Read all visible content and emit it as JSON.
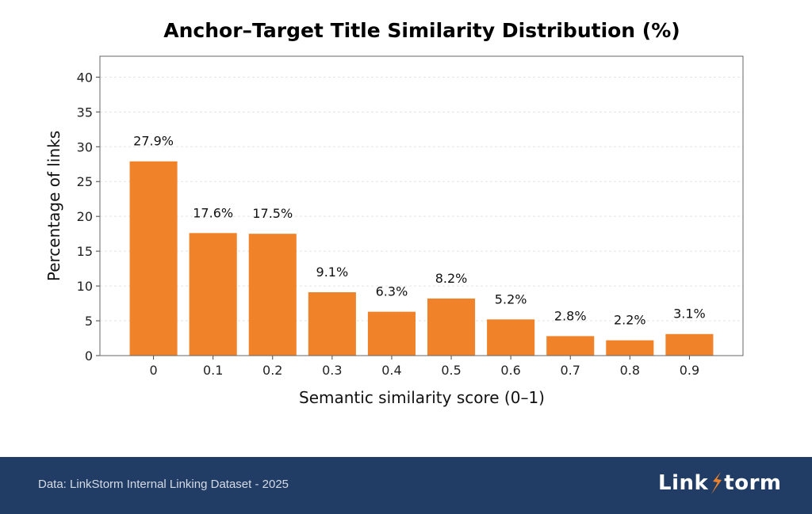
{
  "chart_data": {
    "type": "bar",
    "title": "Anchor–Target Title Similarity Distribution (%)",
    "xlabel": "Semantic similarity score (0–1)",
    "ylabel": "Percentage of links",
    "categories": [
      "0",
      "0.1",
      "0.2",
      "0.3",
      "0.4",
      "0.5",
      "0.6",
      "0.7",
      "0.8",
      "0.9"
    ],
    "values": [
      27.9,
      17.6,
      17.5,
      9.1,
      6.3,
      8.2,
      5.2,
      2.8,
      2.2,
      3.1
    ],
    "data_labels": [
      "27.9%",
      "17.6%",
      "17.5%",
      "9.1%",
      "6.3%",
      "8.2%",
      "5.2%",
      "2.8%",
      "2.2%",
      "3.1%"
    ],
    "ylim": [
      0,
      43
    ],
    "yticks": [
      0,
      5,
      10,
      15,
      20,
      25,
      30,
      35,
      40
    ],
    "grid": "horizontal dashed",
    "bar_color": "#f0832a"
  },
  "footer": {
    "source": "Data: LinkStorm Internal Linking Dataset - 2025",
    "logo_text": "LinkStorm",
    "logo_part1": "Link",
    "logo_part2": "torm",
    "background": "#213d66",
    "accent": "#f0832a"
  }
}
